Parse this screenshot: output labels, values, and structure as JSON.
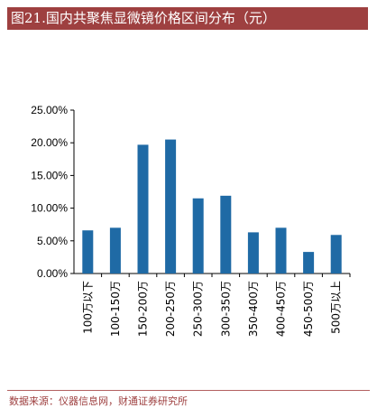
{
  "header": {
    "title": "图21.国内共聚焦显微镜价格区间分布（元）"
  },
  "footer": {
    "source": "数据来源：仪器信息网，财通证券研究所"
  },
  "chart_data": {
    "type": "bar",
    "title": "图21.国内共聚焦显微镜价格区间分布（元）",
    "categories": [
      "100万以下",
      "100-150万",
      "150-200万",
      "200-250万",
      "250-300万",
      "300-350万",
      "350-400万",
      "400-450万",
      "450-500万",
      "500万以上"
    ],
    "values": [
      6.6,
      7.0,
      19.7,
      20.5,
      11.5,
      11.9,
      6.3,
      7.0,
      3.3,
      5.9
    ],
    "ylim": [
      0,
      25
    ],
    "yticks": [
      "0.00%",
      "5.00%",
      "10.00%",
      "15.00%",
      "20.00%",
      "25.00%"
    ],
    "ytick_values": [
      0,
      5,
      10,
      15,
      20,
      25
    ],
    "y_format": "percent",
    "grid": false,
    "legend": "none",
    "bar_color": "#1f6aa5"
  }
}
